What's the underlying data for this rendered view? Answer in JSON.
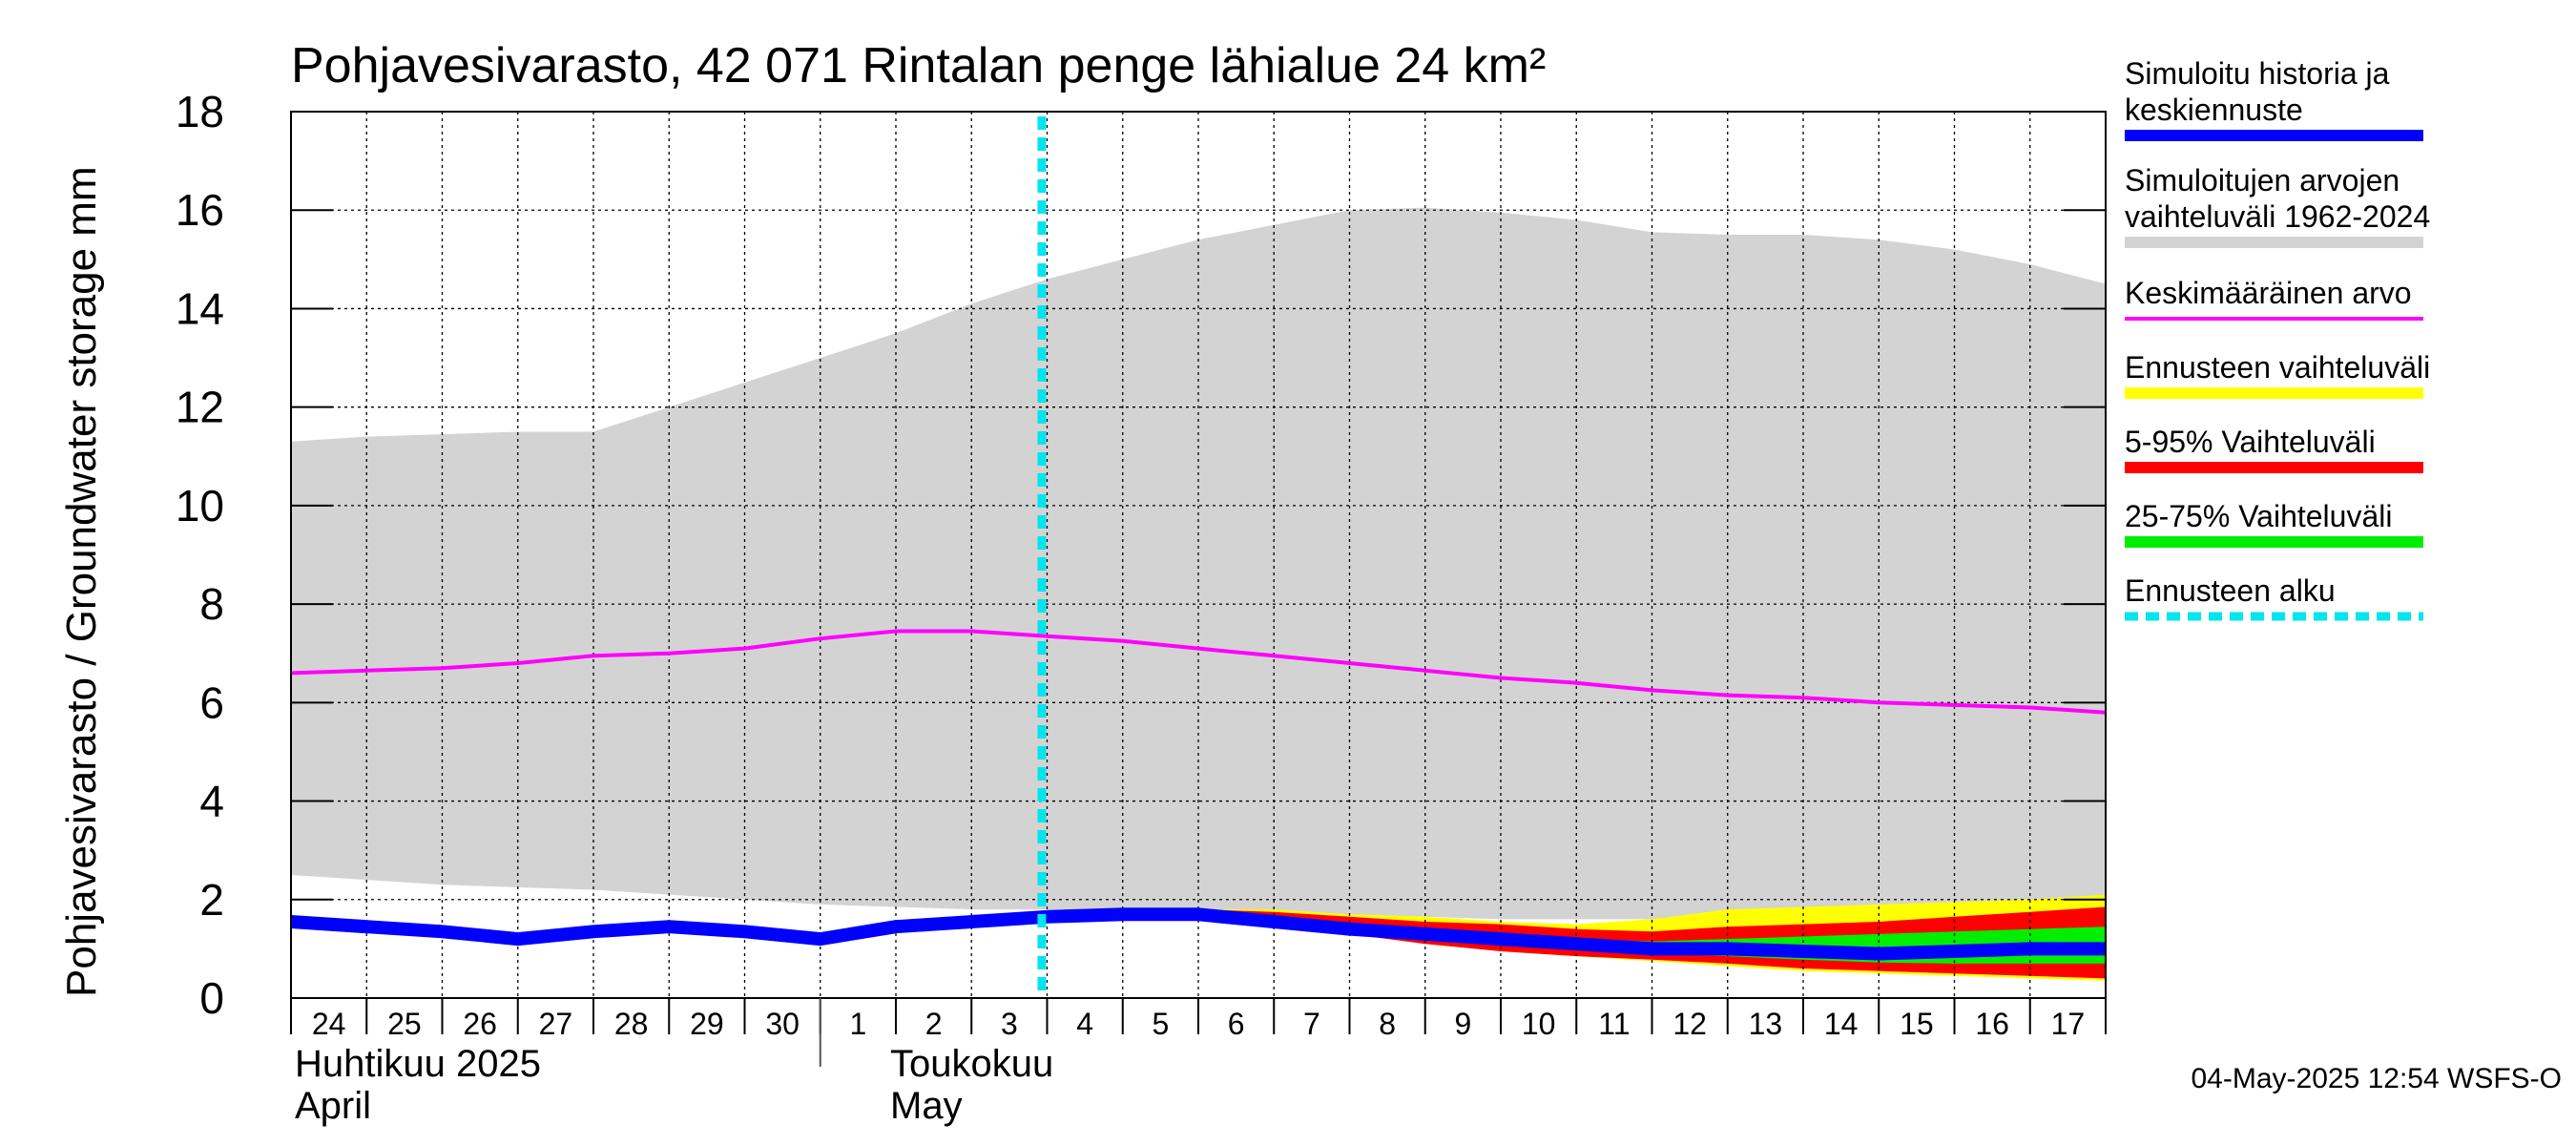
{
  "chart_data": {
    "type": "area",
    "title": "Pohjavesivarasto, 42 071 Rintalan penge lähialue 24 km²",
    "ylabel": "Pohjavesivarasto / Groundwater storage   mm",
    "ylim": [
      0,
      18
    ],
    "yticks": [
      0,
      2,
      4,
      6,
      8,
      10,
      12,
      14,
      16,
      18
    ],
    "grid": true,
    "x_dates": [
      "2025-04-24",
      "2025-04-25",
      "2025-04-26",
      "2025-04-27",
      "2025-04-28",
      "2025-04-29",
      "2025-04-30",
      "2025-05-01",
      "2025-05-02",
      "2025-05-03",
      "2025-05-04",
      "2025-05-05",
      "2025-05-06",
      "2025-05-07",
      "2025-05-08",
      "2025-05-09",
      "2025-05-10",
      "2025-05-11",
      "2025-05-12",
      "2025-05-13",
      "2025-05-14",
      "2025-05-15",
      "2025-05-16",
      "2025-05-17",
      "2025-05-18"
    ],
    "x_tick_labels": [
      "24",
      "25",
      "26",
      "27",
      "28",
      "29",
      "30",
      "1",
      "2",
      "3",
      "4",
      "5",
      "6",
      "7",
      "8",
      "9",
      "10",
      "11",
      "12",
      "13",
      "14",
      "15",
      "16",
      "17"
    ],
    "months": [
      {
        "fi": "Huhtikuu  2025",
        "en": "April"
      },
      {
        "fi": "Toukokuu",
        "en": "May"
      }
    ],
    "forecast_start": "2025-05-04",
    "series": [
      {
        "name": "Simuloitujen arvojen vaihteluväli 1962-2024",
        "kind": "band",
        "color": "#d3d3d3",
        "lower": [
          2.5,
          2.4,
          2.3,
          2.25,
          2.2,
          2.1,
          2.0,
          1.9,
          1.85,
          1.8,
          1.8,
          1.8,
          1.8,
          1.75,
          1.7,
          1.65,
          1.6,
          1.6,
          1.6,
          1.65,
          1.7,
          1.75,
          1.8,
          1.9,
          1.95
        ],
        "upper": [
          11.3,
          11.4,
          11.45,
          11.5,
          11.5,
          12.0,
          12.5,
          13.0,
          13.5,
          14.1,
          14.6,
          15.0,
          15.4,
          15.7,
          16.0,
          16.05,
          15.95,
          15.8,
          15.55,
          15.5,
          15.5,
          15.4,
          15.2,
          14.9,
          14.5
        ]
      },
      {
        "name": "Ennusteen vaihteluväli",
        "kind": "band",
        "color": "#ffff00",
        "lower": [
          null,
          null,
          null,
          null,
          null,
          null,
          null,
          null,
          null,
          null,
          1.7,
          1.8,
          1.8,
          1.55,
          1.3,
          1.1,
          0.95,
          0.85,
          0.75,
          0.65,
          0.55,
          0.5,
          0.45,
          0.4,
          0.35
        ],
        "upper": [
          null,
          null,
          null,
          null,
          null,
          null,
          null,
          null,
          null,
          null,
          1.7,
          1.8,
          1.8,
          1.8,
          1.7,
          1.65,
          1.55,
          1.5,
          1.6,
          1.8,
          1.85,
          1.9,
          1.95,
          2.0,
          2.1
        ]
      },
      {
        "name": "5-95% Vaihteluväli",
        "kind": "band",
        "color": "#ff0000",
        "lower": [
          null,
          null,
          null,
          null,
          null,
          null,
          null,
          null,
          null,
          null,
          1.7,
          1.8,
          1.8,
          1.55,
          1.3,
          1.1,
          0.95,
          0.85,
          0.78,
          0.7,
          0.6,
          0.55,
          0.5,
          0.45,
          0.4
        ],
        "upper": [
          null,
          null,
          null,
          null,
          null,
          null,
          null,
          null,
          null,
          null,
          1.7,
          1.8,
          1.8,
          1.75,
          1.65,
          1.55,
          1.5,
          1.4,
          1.35,
          1.45,
          1.5,
          1.55,
          1.65,
          1.75,
          1.85
        ]
      },
      {
        "name": "25-75% Vaihteluväli",
        "kind": "band",
        "color": "#00ee00",
        "lower": [
          null,
          null,
          null,
          null,
          null,
          null,
          null,
          null,
          null,
          null,
          1.7,
          1.8,
          1.8,
          1.6,
          1.4,
          1.25,
          1.1,
          1.0,
          0.9,
          0.85,
          0.78,
          0.72,
          0.7,
          0.7,
          0.7
        ],
        "upper": [
          null,
          null,
          null,
          null,
          null,
          null,
          null,
          null,
          null,
          null,
          1.7,
          1.8,
          1.8,
          1.65,
          1.5,
          1.4,
          1.3,
          1.2,
          1.15,
          1.2,
          1.25,
          1.3,
          1.35,
          1.4,
          1.45
        ]
      },
      {
        "name": "Keskimääräinen arvo",
        "kind": "line",
        "color": "#ff00ff",
        "values": [
          6.6,
          6.65,
          6.7,
          6.8,
          6.95,
          7.0,
          7.1,
          7.3,
          7.45,
          7.45,
          7.35,
          7.25,
          7.1,
          6.95,
          6.8,
          6.65,
          6.5,
          6.4,
          6.25,
          6.15,
          6.1,
          6.0,
          5.95,
          5.9,
          5.8
        ]
      },
      {
        "name": "Simuloitu historia ja keskiennuste",
        "kind": "line",
        "color": "#0000ff",
        "values": [
          1.55,
          1.45,
          1.35,
          1.2,
          1.35,
          1.45,
          1.35,
          1.2,
          1.45,
          1.55,
          1.65,
          1.7,
          1.7,
          1.55,
          1.4,
          1.3,
          1.2,
          1.1,
          1.0,
          1.0,
          0.95,
          0.9,
          0.95,
          1.0,
          1.0
        ]
      }
    ],
    "legend": [
      {
        "label": [
          "Simuloitu historia ja",
          "keskiennuste"
        ],
        "color": "#0000ff",
        "style": "thick"
      },
      {
        "label": [
          "Simuloitujen arvojen",
          "vaihteluväli 1962-2024"
        ],
        "color": "#d3d3d3",
        "style": "medium"
      },
      {
        "label": [
          "Keskimääräinen arvo"
        ],
        "color": "#ff00ff",
        "style": "thin"
      },
      {
        "label": [
          "Ennusteen vaihteluväli"
        ],
        "color": "#ffff00",
        "style": "medium"
      },
      {
        "label": [
          "5-95% Vaihteluväli"
        ],
        "color": "#ff0000",
        "style": "medium"
      },
      {
        "label": [
          "25-75% Vaihteluväli"
        ],
        "color": "#00ee00",
        "style": "medium"
      },
      {
        "label": [
          "Ennusteen alku"
        ],
        "color": "#00e5ee",
        "style": "dashed"
      }
    ],
    "legend_placement": "right"
  },
  "footer": {
    "timestamp": "04-May-2025 12:54 WSFS-O"
  },
  "colors": {
    "forecast_line": "#00e5ee",
    "grid": "#000000",
    "axis": "#000000"
  }
}
